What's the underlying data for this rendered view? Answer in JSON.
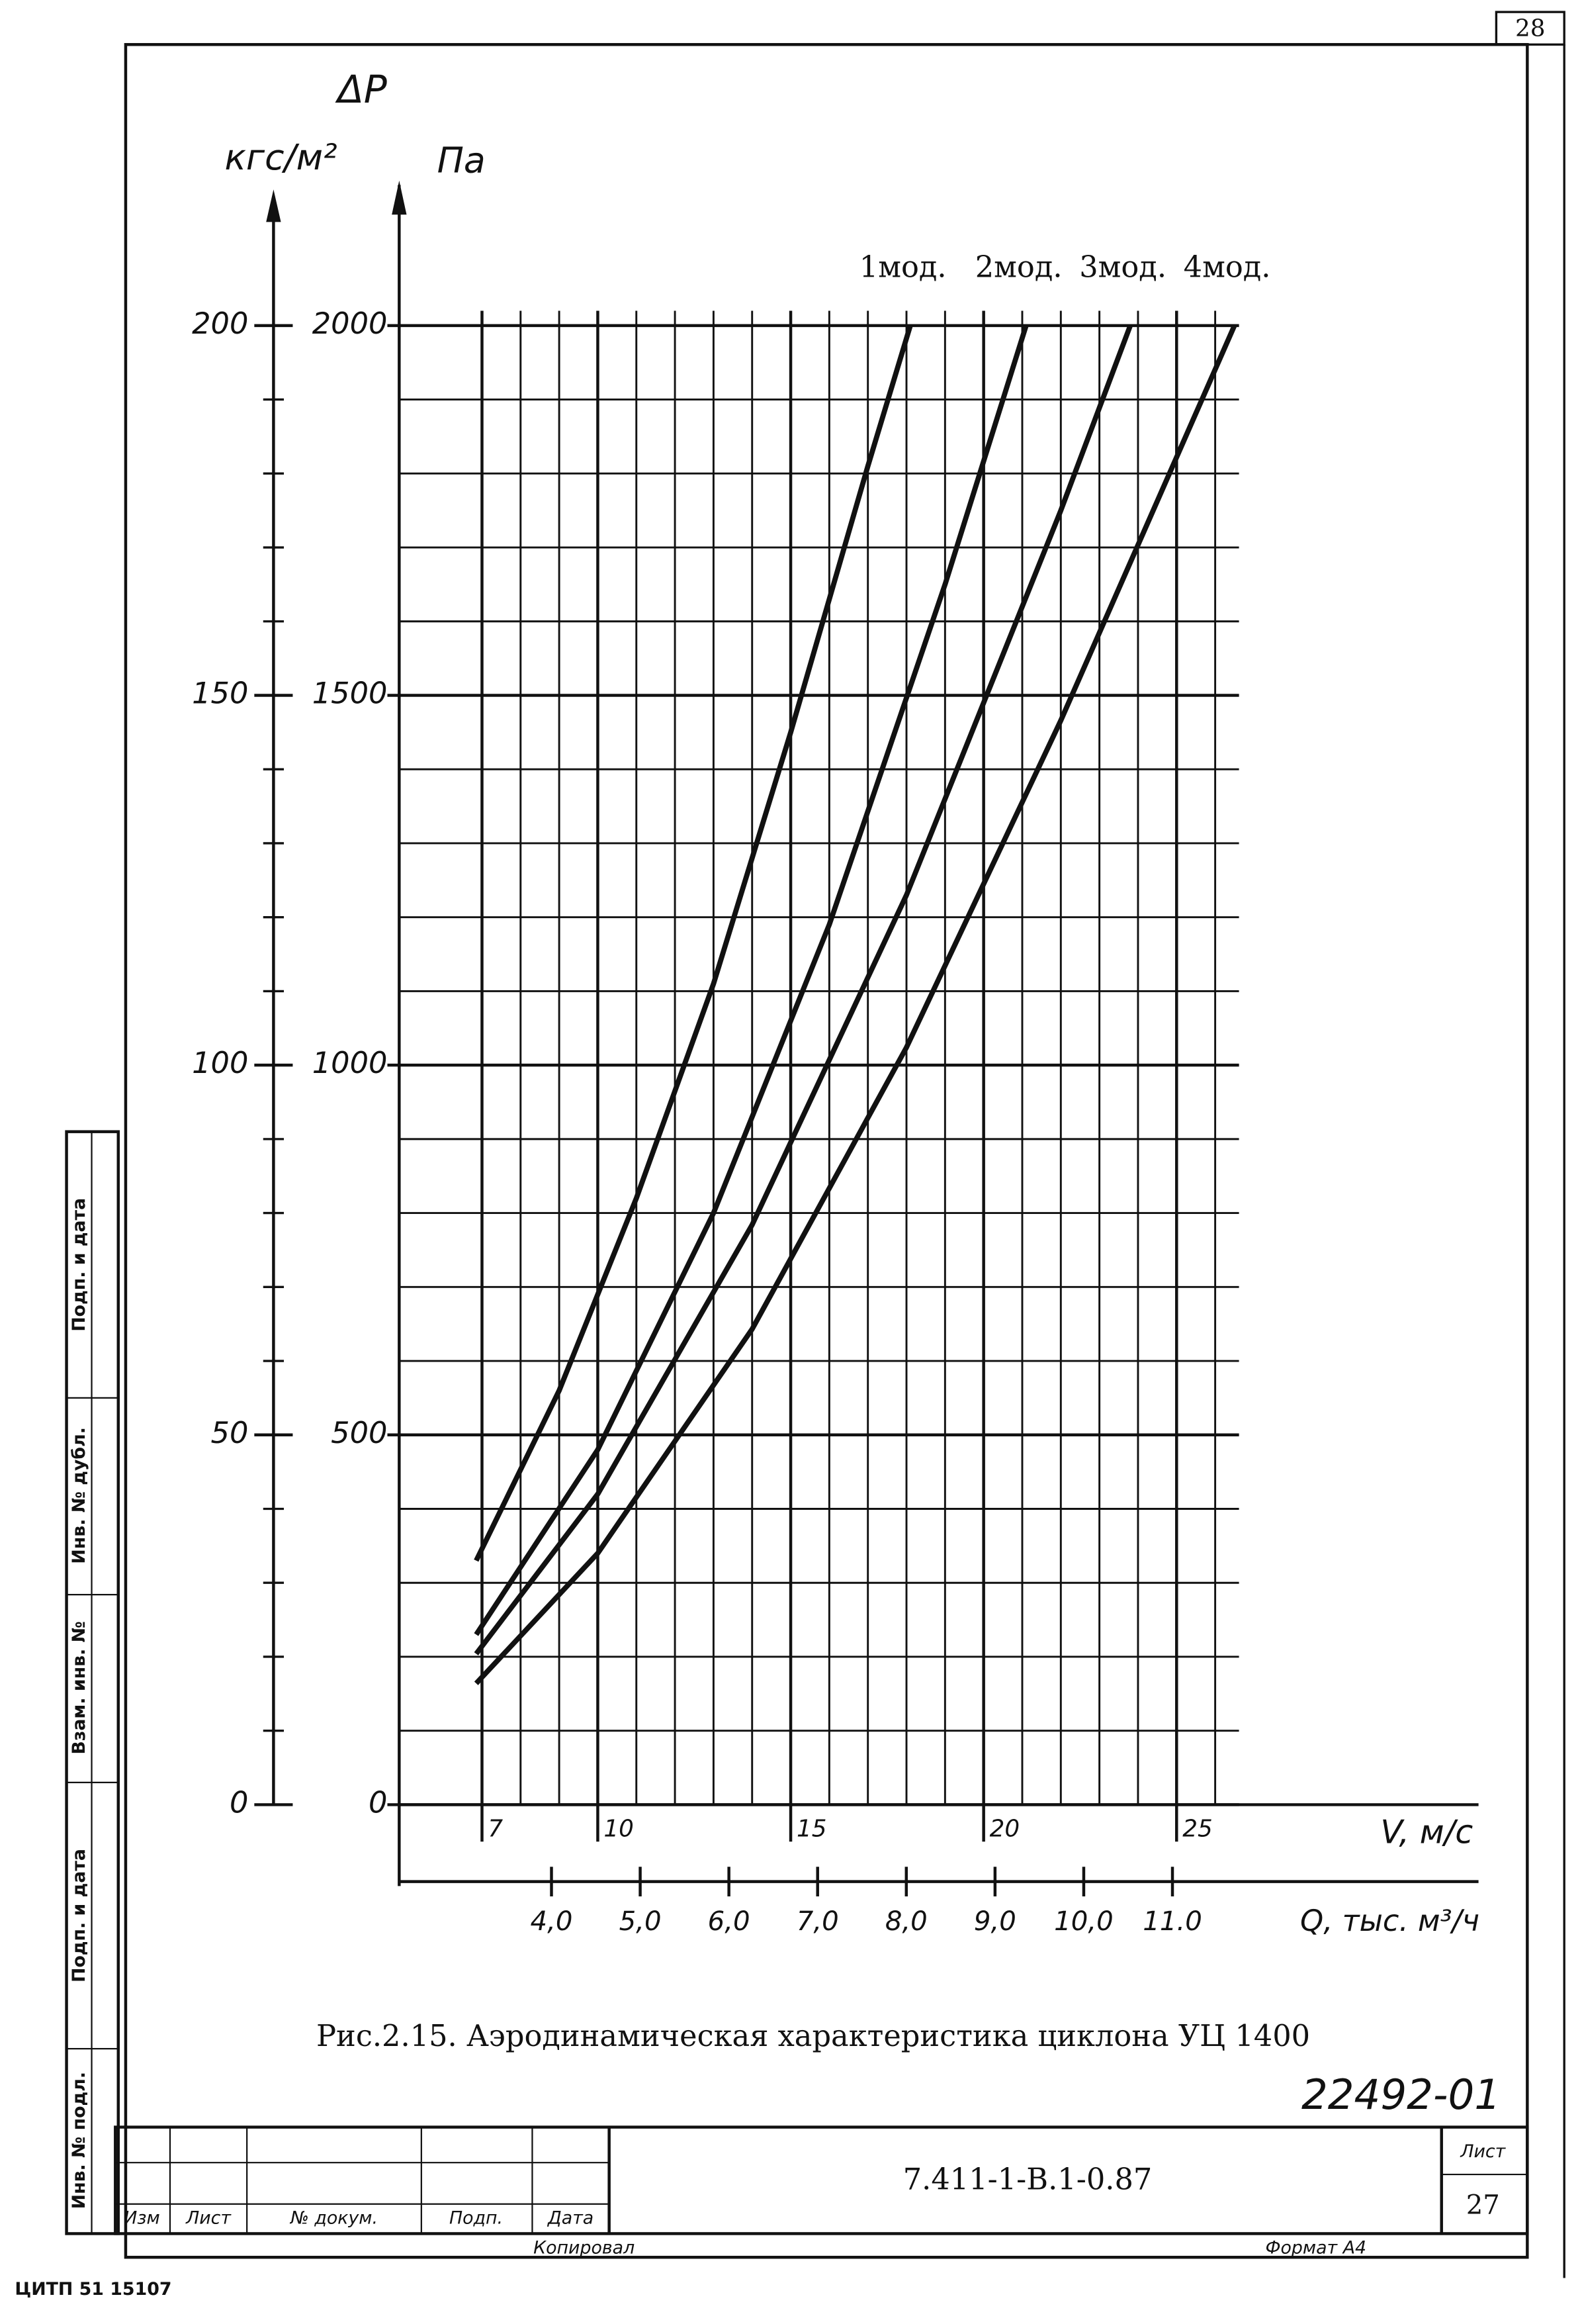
{
  "chart_data": {
    "type": "line",
    "y_symbol": "ΔP",
    "ylabel": "кгс/м²",
    "y2label": "Па",
    "xlabel": "V, м/с",
    "x2label": "Q, тыс. м³/ч",
    "caption": "Рис.2.15. Аэродинамическая характеристика циклона УЦ 1400",
    "xlim": [
      6.5,
      26.5
    ],
    "xticks": [
      7,
      10,
      15,
      20,
      25
    ],
    "x2lim": [
      3.2,
      11.5
    ],
    "x2ticks": [
      {
        "value": 4,
        "label": "4,0"
      },
      {
        "value": 5,
        "label": "5,0"
      },
      {
        "value": 6,
        "label": "6,0"
      },
      {
        "value": 7,
        "label": "7,0"
      },
      {
        "value": 8,
        "label": "8,0"
      },
      {
        "value": 9,
        "label": "9,0"
      },
      {
        "value": 10,
        "label": "10,0"
      },
      {
        "value": 11,
        "label": "11.0"
      }
    ],
    "ylim": [
      0,
      200
    ],
    "yticks": [
      0,
      50,
      100,
      150,
      200
    ],
    "y2lim": [
      0,
      2000
    ],
    "y2ticks": [
      0,
      500,
      1000,
      1500,
      2000
    ],
    "grid": true,
    "series": [
      {
        "name": "1мод.",
        "color": "#111",
        "axis": "y2",
        "x": [
          6.85,
          9,
          11,
          13,
          15,
          17,
          18.1
        ],
        "values": [
          330,
          560,
          820,
          1110,
          1450,
          1810,
          2000
        ]
      },
      {
        "name": "2мод.",
        "color": "#111",
        "axis": "y2",
        "x": [
          6.85,
          10,
          13,
          16,
          19,
          21.1
        ],
        "values": [
          230,
          480,
          800,
          1190,
          1650,
          2000
        ]
      },
      {
        "name": "3мод.",
        "color": "#111",
        "axis": "y2",
        "x": [
          6.85,
          10,
          14,
          18,
          22,
          23.8
        ],
        "values": [
          204,
          420,
          784,
          1230,
          1750,
          2000
        ]
      },
      {
        "name": "4мод.",
        "color": "#111",
        "axis": "y2",
        "x": [
          6.85,
          10,
          14,
          18,
          22,
          26.5
        ],
        "values": [
          164,
          340,
          643,
          1024,
          1466,
          2000
        ]
      }
    ]
  },
  "frame": {
    "page": "28",
    "sheet_label": "Лист",
    "sheet": "27",
    "doc_code": "7.411-1-В.1-0.87",
    "inventory": "22492-01",
    "columns": [
      "Изм",
      "Лист",
      "№ докум.",
      "Подп.",
      "Дата"
    ],
    "copied": "Копировал",
    "format": "Формат А4",
    "printer": "ЦИТП 51 15107",
    "side": [
      "Подп. и дата",
      "Инв. № дубл.",
      "Взам. инв. №",
      "Подп. и дата",
      "Инв. № подл."
    ]
  }
}
